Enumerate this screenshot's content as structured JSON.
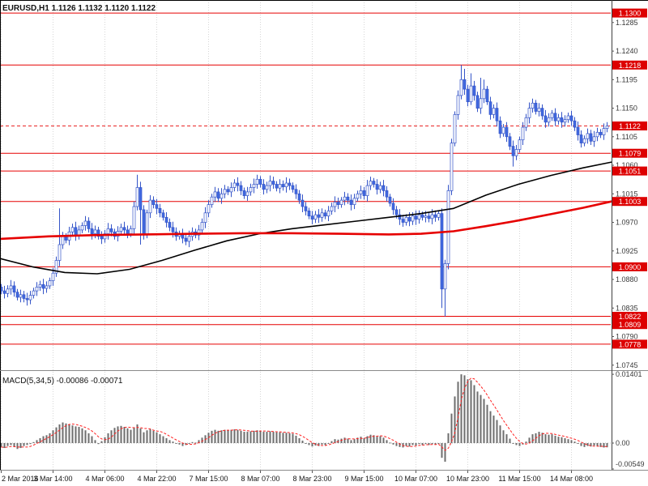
{
  "header": {
    "symbol": "EURUSD",
    "timeframe": "H1",
    "open": "1.1126",
    "high": "1.1132",
    "low": "1.1120",
    "close": "1.1122",
    "display": "EURUSD,H1 1.1126 1.1132 1.1120 1.1122"
  },
  "indicator": {
    "name": "MACD(5,34,5)",
    "macd_value": "-0.00086",
    "signal_value": "-0.00071",
    "display": "MACD(5,34,5) -0.00086 -0.00071"
  },
  "colors": {
    "bull": "#ffffff",
    "bear": "#4169e1",
    "candle_border": "#3555c8",
    "level": "#e60000",
    "label_box": "#dd0000",
    "label_text": "#ffffff",
    "ma_black": "#000000",
    "ma_red": "#e60000",
    "hist": "#6e6e6e",
    "signal": "#ff2020",
    "grid": "#d6d6d6",
    "axis_text": "#3a3a3a",
    "frame": "#000000",
    "separator": "#8a8a8a"
  },
  "chart_data": [
    {
      "name": "price",
      "type": "candlestick",
      "title": "EURUSD H1",
      "open_first": 1.0868,
      "closes": [
        1.0862,
        1.0858,
        1.0865,
        1.087,
        1.086,
        1.0852,
        1.0856,
        1.085,
        1.0848,
        1.0855,
        1.0862,
        1.0868,
        1.0872,
        1.0866,
        1.087,
        1.0878,
        1.089,
        1.091,
        1.0935,
        1.0948,
        1.0942,
        1.0955,
        1.0962,
        1.095,
        1.0958,
        1.0965,
        1.0972,
        1.096,
        1.0952,
        1.0958,
        1.0948,
        1.0944,
        1.0952,
        1.096,
        1.0955,
        1.0948,
        1.0956,
        1.0962,
        1.0958,
        1.0952,
        1.096,
        1.0995,
        1.1025,
        1.099,
        1.095,
        1.0985,
        1.1005,
        1.0998,
        1.0992,
        1.0985,
        1.0978,
        1.097,
        1.0962,
        1.0955,
        1.0948,
        1.0952,
        1.0945,
        1.094,
        1.0948,
        1.0955,
        1.095,
        1.0958,
        1.097,
        1.0985,
        1.0998,
        1.101,
        1.1018,
        1.1008,
        1.1015,
        1.1022,
        1.1018,
        1.1025,
        1.1032,
        1.1028,
        1.102,
        1.1012,
        1.1018,
        1.1025,
        1.103,
        1.1038,
        1.103,
        1.1022,
        1.1028,
        1.1035,
        1.103,
        1.1024,
        1.103,
        1.1026,
        1.1032,
        1.1028,
        1.1022,
        1.1015,
        1.1005,
        1.0995,
        1.0988,
        1.098,
        1.0975,
        1.0982,
        1.0978,
        1.0985,
        1.098,
        1.0988,
        1.0995,
        1.1002,
        1.0998,
        1.1005,
        1.101,
        1.1005,
        1.0998,
        1.1008,
        1.1015,
        1.102,
        1.1012,
        1.1028,
        1.1035,
        1.103,
        1.1022,
        1.1028,
        1.102,
        1.101,
        1.1,
        1.099,
        1.0982,
        1.0975,
        1.097,
        1.0978,
        1.0972,
        1.098,
        1.0975,
        1.0982,
        1.0978,
        1.098,
        1.0976,
        1.0982,
        1.0978,
        1.0984,
        1.0865,
        1.0905,
        1.102,
        1.1095,
        1.114,
        1.117,
        1.1195,
        1.118,
        1.116,
        1.1185,
        1.117,
        1.115,
        1.1165,
        1.118,
        1.116,
        1.114,
        1.115,
        1.113,
        1.111,
        1.112,
        1.1105,
        1.109,
        1.1075,
        1.1085,
        1.11,
        1.112,
        1.1135,
        1.115,
        1.1158,
        1.1145,
        1.115,
        1.1138,
        1.1128,
        1.1135,
        1.1142,
        1.113,
        1.1135,
        1.1128,
        1.1132,
        1.1138,
        1.113,
        1.112,
        1.1108,
        1.1095,
        1.1102,
        1.111,
        1.1098,
        1.1105,
        1.1112,
        1.1108,
        1.1118,
        1.1122
      ],
      "wick_overrides": {
        "18": {
          "h": 1.0992
        },
        "42": {
          "h": 1.1045
        },
        "43": {
          "l": 1.0935
        },
        "136": {
          "l": 1.0835
        },
        "137": {
          "l": 1.0822
        },
        "142": {
          "h": 1.1218
        },
        "143": {
          "h": 1.1212
        },
        "145": {
          "h": 1.1205
        },
        "148": {
          "h": 1.1198
        },
        "149": {
          "h": 1.1195
        },
        "158": {
          "l": 1.1058
        }
      },
      "levels": [
        {
          "price": 1.13,
          "label": "1.1300"
        },
        {
          "price": 1.1218,
          "label": "1.1218"
        },
        {
          "price": 1.1079,
          "label": "1.1079"
        },
        {
          "price": 1.1051,
          "label": "1.1051"
        },
        {
          "price": 1.1003,
          "label": "1.1003"
        },
        {
          "price": 1.09,
          "label": "1.0900"
        },
        {
          "price": 1.0822,
          "label": "1.0822"
        },
        {
          "price": 1.0809,
          "label": "1.0809"
        },
        {
          "price": 1.0778,
          "label": "1.0778"
        }
      ],
      "current_price": {
        "price": 1.1122,
        "label": "1.1122"
      },
      "y_ticks": [
        {
          "price": 1.1285,
          "label": "1.1285"
        },
        {
          "price": 1.124,
          "label": "1.1240"
        },
        {
          "price": 1.1195,
          "label": "1.1195"
        },
        {
          "price": 1.115,
          "label": "1.1150"
        },
        {
          "price": 1.1105,
          "label": "1.1105"
        },
        {
          "price": 1.106,
          "label": "1.1060"
        },
        {
          "price": 1.1015,
          "label": "1.1015"
        },
        {
          "price": 1.097,
          "label": "1.0970"
        },
        {
          "price": 1.0925,
          "label": "1.0925"
        },
        {
          "price": 1.088,
          "label": "1.0880"
        },
        {
          "price": 1.0835,
          "label": "1.0835"
        },
        {
          "price": 1.079,
          "label": "1.0790"
        },
        {
          "price": 1.0745,
          "label": "1.0745"
        }
      ],
      "ma_black": [
        [
          0,
          1.0913
        ],
        [
          40,
          1.09
        ],
        [
          80,
          1.0891
        ],
        [
          120,
          1.0889
        ],
        [
          160,
          1.0896
        ],
        [
          200,
          1.091
        ],
        [
          240,
          1.0926
        ],
        [
          280,
          1.0941
        ],
        [
          320,
          1.0952
        ],
        [
          360,
          1.096
        ],
        [
          400,
          1.0966
        ],
        [
          440,
          1.0972
        ],
        [
          480,
          1.0978
        ],
        [
          520,
          1.0984
        ],
        [
          560,
          1.0992
        ],
        [
          600,
          1.1013
        ],
        [
          640,
          1.103
        ],
        [
          680,
          1.1044
        ],
        [
          720,
          1.1056
        ],
        [
          755,
          1.1065
        ]
      ],
      "ma_red": [
        [
          0,
          1.0944
        ],
        [
          60,
          1.0948
        ],
        [
          120,
          1.095
        ],
        [
          180,
          1.0951
        ],
        [
          240,
          1.0952
        ],
        [
          300,
          1.0953
        ],
        [
          360,
          1.0953
        ],
        [
          420,
          1.0952
        ],
        [
          480,
          1.0951
        ],
        [
          520,
          1.0952
        ],
        [
          560,
          1.0956
        ],
        [
          600,
          1.0964
        ],
        [
          640,
          1.0973
        ],
        [
          680,
          1.0983
        ],
        [
          720,
          1.0993
        ],
        [
          755,
          1.1003
        ]
      ],
      "time_labels": [
        {
          "index": 0,
          "label": "2 Mar 2016"
        },
        {
          "index": 16,
          "label": "3 Mar 14:00"
        },
        {
          "index": 32,
          "label": "4 Mar 06:00"
        },
        {
          "index": 48,
          "label": "4 Mar 22:00"
        },
        {
          "index": 64,
          "label": "7 Mar 15:00"
        },
        {
          "index": 80,
          "label": "8 Mar 07:00"
        },
        {
          "index": 96,
          "label": "8 Mar 23:00"
        },
        {
          "index": 112,
          "label": "9 Mar 15:00"
        },
        {
          "index": 128,
          "label": "10 Mar 07:00"
        },
        {
          "index": 144,
          "label": "10 Mar 23:00"
        },
        {
          "index": 160,
          "label": "11 Mar 15:00"
        },
        {
          "index": 176,
          "label": "14 Mar 08:00"
        }
      ]
    },
    {
      "name": "macd",
      "type": "bar",
      "title": "MACD(5,34,5)",
      "signal_sma_period": 5,
      "last_macd": -0.00086,
      "last_signal": -0.00071,
      "y_ticks": [
        {
          "value": 0.01401,
          "label": "0.01401"
        },
        {
          "value": 0.0,
          "label": "0.00"
        },
        {
          "value": -0.00549,
          "label": "-0.00549"
        }
      ],
      "values": [
        -0.0008,
        -0.001,
        -0.0006,
        -0.0004,
        -0.0008,
        -0.0012,
        -0.001,
        -0.0006,
        -0.0004,
        -0.0002,
        0.0002,
        0.0006,
        0.001,
        0.0014,
        0.0016,
        0.002,
        0.0026,
        0.0032,
        0.0038,
        0.0042,
        0.004,
        0.0038,
        0.0036,
        0.0034,
        0.0033,
        0.003,
        0.0026,
        0.002,
        0.0014,
        0.0006,
        -0.0002,
        0.0004,
        0.0012,
        0.002,
        0.0026,
        0.0031,
        0.0034,
        0.0035,
        0.0033,
        0.003,
        0.0027,
        0.0032,
        0.0038,
        0.003,
        0.0022,
        0.0026,
        0.0028,
        0.0025,
        0.0022,
        0.0018,
        0.0014,
        0.001,
        0.0006,
        0.0003,
        0.0,
        -0.0003,
        -0.0006,
        -0.0004,
        -0.0001,
        0.0002,
        0.0001,
        0.0006,
        0.0011,
        0.0016,
        0.0021,
        0.0025,
        0.0027,
        0.0025,
        0.0026,
        0.0027,
        0.0026,
        0.0027,
        0.0028,
        0.0027,
        0.0025,
        0.0023,
        0.0023,
        0.0024,
        0.0025,
        0.0026,
        0.0025,
        0.0023,
        0.0023,
        0.0024,
        0.0023,
        0.0022,
        0.0022,
        0.0021,
        0.0021,
        0.002,
        0.0019,
        0.0015,
        0.001,
        0.0005,
        0.0,
        -0.0004,
        -0.0007,
        -0.0005,
        -0.0006,
        -0.0003,
        -0.0004,
        0.0,
        0.0004,
        0.0008,
        0.0007,
        0.0009,
        0.0011,
        0.0009,
        0.0006,
        0.0008,
        0.0011,
        0.0013,
        0.001,
        0.0014,
        0.0017,
        0.0016,
        0.0013,
        0.0014,
        0.0011,
        0.0006,
        0.0001,
        -0.0003,
        -0.0006,
        -0.0008,
        -0.0009,
        -0.0006,
        -0.0007,
        -0.0004,
        -0.0005,
        -0.0002,
        -0.0004,
        -0.0002,
        -0.0004,
        -0.0002,
        -0.0003,
        -0.0001,
        -0.003,
        -0.0038,
        0.002,
        0.006,
        0.0095,
        0.0125,
        0.01401,
        0.0138,
        0.013,
        0.0128,
        0.0118,
        0.0105,
        0.0098,
        0.009,
        0.0078,
        0.0065,
        0.0056,
        0.0047,
        0.0036,
        0.0026,
        0.0018,
        0.0009,
        0.0,
        -0.0004,
        -0.0006,
        -0.0003,
        0.0003,
        0.0011,
        0.0018,
        0.002,
        0.0023,
        0.0021,
        0.0018,
        0.0017,
        0.0018,
        0.0015,
        0.0013,
        0.0012,
        0.001,
        0.0008,
        0.0006,
        0.0003,
        -0.0001,
        -0.0006,
        -0.0008,
        -0.0006,
        -0.0007,
        -0.0005,
        -0.0006,
        -0.0008,
        -0.0009,
        -0.00086
      ]
    }
  ]
}
